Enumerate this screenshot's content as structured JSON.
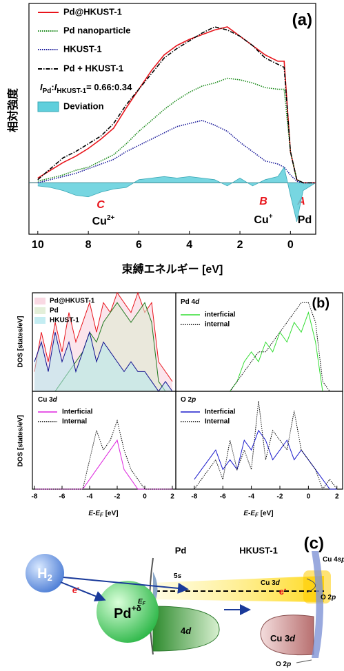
{
  "chart_data": [
    {
      "type": "line",
      "label": "(a)",
      "xlabel": "束縛エネルギー  [eV]",
      "ylabel": "相対強度",
      "xlim": [
        10.35,
        -1
      ],
      "ylim": [
        -33,
        115
      ],
      "xticks": [
        10,
        8,
        6,
        4,
        2,
        0
      ],
      "ratio_label": {
        "i1": "I",
        "sub1": "Pd",
        "sep": ":",
        "i2": "I",
        "sub2": "HKUST-1",
        "rest": "= 0.66:0.34"
      },
      "annotations": [
        {
          "text": "C"
        },
        {
          "text": "Cu",
          "sup": "2+"
        },
        {
          "text": "B"
        },
        {
          "text": "Cu",
          "sup": "+"
        },
        {
          "text": "A"
        },
        {
          "text": "Pd"
        }
      ],
      "x": [
        10,
        9.5,
        9,
        8.5,
        8,
        7.5,
        7,
        6.5,
        6,
        5.5,
        5,
        4.5,
        4,
        3.5,
        3,
        2.5,
        2,
        1.5,
        1,
        0.5,
        0.25,
        0,
        -0.25,
        -0.5,
        -1
      ],
      "series": [
        {
          "name": "Pd@HKUST-1",
          "color": "#e8141b",
          "style": "solid",
          "values": [
            3,
            8,
            13,
            17,
            22,
            28,
            35,
            48,
            60,
            72,
            82,
            88,
            92,
            95,
            98,
            100,
            94,
            88,
            82,
            78,
            78,
            20,
            2,
            0,
            0
          ]
        },
        {
          "name": "Pd nanoparticle",
          "color": "#1a8a1a",
          "style": "dotted",
          "values": [
            1,
            3,
            5,
            8,
            10,
            14,
            18,
            25,
            33,
            40,
            47,
            53,
            58,
            62,
            64,
            67,
            66,
            64,
            61,
            60,
            60,
            20,
            2,
            0,
            0
          ]
        },
        {
          "name": "HKUST-1",
          "color": "#1a1a9a",
          "style": "dotted",
          "values": [
            0,
            2,
            4,
            6,
            9,
            12,
            15,
            20,
            24,
            28,
            32,
            36,
            38,
            40,
            37,
            33,
            26,
            20,
            14,
            12,
            10,
            5,
            1,
            0,
            0
          ]
        },
        {
          "name": "Pd + HKUST-1",
          "color": "#000000",
          "style": "dashdot",
          "values": [
            2,
            9,
            16,
            20,
            25,
            30,
            38,
            50,
            60,
            70,
            80,
            86,
            91,
            96,
            100,
            98,
            94,
            88,
            80,
            76,
            74,
            20,
            2,
            0,
            0
          ]
        },
        {
          "name": "Deviation",
          "color": "#5fcfdc",
          "style": "area",
          "values": [
            -2,
            -3,
            -5,
            -8,
            -9,
            -6,
            -4,
            -3,
            2,
            3,
            4,
            3,
            4,
            3,
            2,
            -2,
            3,
            -2,
            2,
            4,
            10,
            -8,
            -25,
            -5,
            0
          ]
        }
      ]
    },
    {
      "type": "line",
      "label": "(b)",
      "xlim": [
        -8.15,
        2.25
      ],
      "ylim": [
        0,
        10
      ],
      "x": [
        -8,
        -7.5,
        -7,
        -6.5,
        -6,
        -5.5,
        -5,
        -4.5,
        -4,
        -3.5,
        -3,
        -2.5,
        -2,
        -1.5,
        -1,
        -0.5,
        0,
        0.5,
        1,
        1.5,
        2
      ],
      "series": [
        {
          "name": "Pd@HKUST-1",
          "color": "#e8141b",
          "fill": "#f7cfdc",
          "style": "solid",
          "values": [
            2,
            6,
            3,
            7,
            4,
            8,
            5,
            7,
            9,
            6,
            9,
            8,
            10,
            9,
            8,
            10,
            8,
            9,
            3,
            2,
            1
          ]
        },
        {
          "name": "Pd",
          "color": "#1f7a1f",
          "fill": "#dcebcf",
          "style": "solid",
          "values": [
            0,
            0,
            0,
            0,
            1,
            2,
            3,
            4,
            6,
            5,
            7,
            8,
            9,
            8,
            7,
            8,
            9,
            7,
            1,
            0,
            0
          ]
        },
        {
          "name": "HKUST-1",
          "color": "#101090",
          "fill": "#b5e8ef",
          "style": "solid",
          "values": [
            3,
            5,
            2,
            6,
            3,
            5,
            2,
            4,
            6,
            3,
            5,
            4,
            3,
            2,
            3,
            2,
            2,
            1,
            0,
            1,
            0
          ]
        }
      ]
    },
    {
      "type": "line",
      "title": {
        "text": "Pd 4",
        "italic": "d"
      },
      "xlim": [
        -9.3,
        2.4
      ],
      "ylim": [
        0,
        10
      ],
      "x": [
        -8,
        -7.5,
        -7,
        -6.5,
        -6,
        -5.5,
        -5,
        -4.5,
        -4,
        -3.5,
        -3,
        -2.5,
        -2,
        -1.5,
        -1,
        -0.5,
        0,
        0.5,
        1,
        1.5,
        2
      ],
      "series": [
        {
          "name": "interficial",
          "color": "#33dd33",
          "style": "solid",
          "values": [
            0,
            0,
            0,
            0,
            0,
            0,
            1,
            3,
            4,
            3,
            5,
            4,
            6,
            5,
            7,
            6,
            8,
            5,
            0,
            0,
            0
          ]
        },
        {
          "name": "internal",
          "color": "#000000",
          "style": "dotted",
          "values": [
            0,
            0,
            0,
            0,
            0,
            0,
            1,
            2,
            3,
            4,
            4,
            5,
            6,
            7,
            8,
            9,
            9,
            7,
            1,
            0,
            0
          ]
        }
      ]
    },
    {
      "type": "line",
      "title": {
        "text": "Cu 3",
        "italic": "d"
      },
      "xlabel": {
        "main": "E-E",
        "sub": "F",
        "unit": " [eV]"
      },
      "ylabel": "DOS [states/eV]",
      "xlim": [
        -8.15,
        2.25
      ],
      "ylim": [
        0,
        10
      ],
      "xticks": [
        -8,
        -6,
        -4,
        -2,
        0,
        2
      ],
      "x": [
        -8,
        -7.5,
        -7,
        -6.5,
        -6,
        -5.5,
        -5,
        -4.5,
        -4,
        -3.5,
        -3,
        -2.5,
        -2,
        -1.5,
        -1,
        -0.5,
        0,
        0.5,
        1,
        1.5,
        2
      ],
      "series": [
        {
          "name": "Interficial",
          "color": "#dd22dd",
          "style": "solid",
          "values": [
            0,
            0,
            0,
            0,
            0,
            0,
            0,
            0,
            1,
            2,
            3,
            4,
            5,
            2,
            1,
            0,
            0,
            0,
            0,
            0,
            0
          ]
        },
        {
          "name": "Internal",
          "color": "#000000",
          "style": "dotted",
          "values": [
            0,
            0,
            0,
            0,
            0,
            0,
            0,
            0,
            3,
            6,
            4,
            5,
            7,
            4,
            2,
            1,
            0,
            0,
            0,
            0,
            0
          ]
        }
      ]
    },
    {
      "type": "line",
      "title": {
        "text": "O 2",
        "italic": "p"
      },
      "xlabel": {
        "main": "E-E",
        "sub": "F",
        "unit": " [eV]"
      },
      "xlim": [
        -9.3,
        2.4
      ],
      "ylim": [
        0,
        10
      ],
      "xticks": [
        -8,
        -6,
        -4,
        -2,
        0,
        2
      ],
      "x": [
        -8,
        -7.5,
        -7,
        -6.5,
        -6,
        -5.5,
        -5,
        -4.5,
        -4,
        -3.5,
        -3,
        -2.5,
        -2,
        -1.5,
        -1,
        -0.5,
        0,
        0.5,
        1,
        1.5,
        2
      ],
      "series": [
        {
          "name": "Interficial",
          "color": "#1a1acc",
          "style": "solid",
          "values": [
            1,
            2,
            3,
            4,
            2,
            3,
            2,
            5,
            4,
            6,
            5,
            3,
            4,
            5,
            3,
            4,
            3,
            2,
            1,
            0,
            0
          ]
        },
        {
          "name": "Internal",
          "color": "#000000",
          "style": "dotted",
          "values": [
            0,
            1,
            2,
            3,
            1,
            5,
            2,
            4,
            2,
            9,
            3,
            6,
            5,
            4,
            8,
            4,
            3,
            2,
            0,
            1,
            0
          ]
        }
      ]
    }
  ],
  "panel_b_ylabel": "DOS [states/eV]",
  "diagram": {
    "label": "(c)",
    "h2": {
      "text": "H",
      "sub": "2"
    },
    "electron1": {
      "text": "e",
      "sup": "-"
    },
    "pd_ion": {
      "text": "Pd",
      "sup": "+δ"
    },
    "pd": "Pd",
    "hkust": "HKUST-1",
    "s5": {
      "num": "5",
      "italic": "s"
    },
    "ef": {
      "text": "E",
      "sub": "F"
    },
    "d4": {
      "num": "4",
      "italic": "d"
    },
    "cu3d_top": {
      "text": "Cu 3",
      "italic": "d"
    },
    "electron2": {
      "text": "e",
      "sup": "-"
    },
    "o2p_top": {
      "text": "O 2",
      "italic": "p"
    },
    "cu4sp": {
      "text": "Cu 4",
      "italic": "sp"
    },
    "cu3d_bottom": {
      "text": "Cu 3",
      "italic": "d"
    },
    "o2p_bottom": {
      "text": "O 2",
      "italic": "p"
    }
  }
}
